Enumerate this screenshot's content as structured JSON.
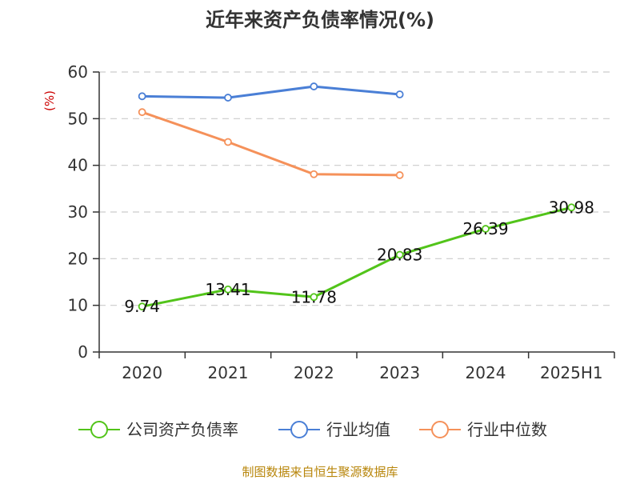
{
  "chart_data": {
    "type": "line",
    "title": "近年来资产负债率情况(%)",
    "ylabel": "(%)",
    "xlabel": "",
    "categories": [
      "2020",
      "2021",
      "2022",
      "2023",
      "2024",
      "2025H1"
    ],
    "ylim": [
      0,
      60
    ],
    "yticks": [
      0,
      10,
      20,
      30,
      40,
      50,
      60
    ],
    "grid": true,
    "legend_position": "bottom",
    "series": [
      {
        "name": "公司资产负债率",
        "color": "#52c41a",
        "values": [
          9.74,
          13.41,
          11.78,
          20.83,
          26.39,
          30.98
        ],
        "labels": [
          "9.74",
          "13.41",
          "11.78",
          "20.83",
          "26.39",
          "30.98"
        ]
      },
      {
        "name": "行业均值",
        "color": "#4a7fd6",
        "values": [
          54.8,
          54.5,
          56.9,
          55.2,
          null,
          null
        ]
      },
      {
        "name": "行业中位数",
        "color": "#f5915a",
        "values": [
          51.4,
          45.0,
          38.1,
          37.9,
          null,
          null
        ]
      }
    ],
    "source": "制图数据来自恒生聚源数据库"
  }
}
